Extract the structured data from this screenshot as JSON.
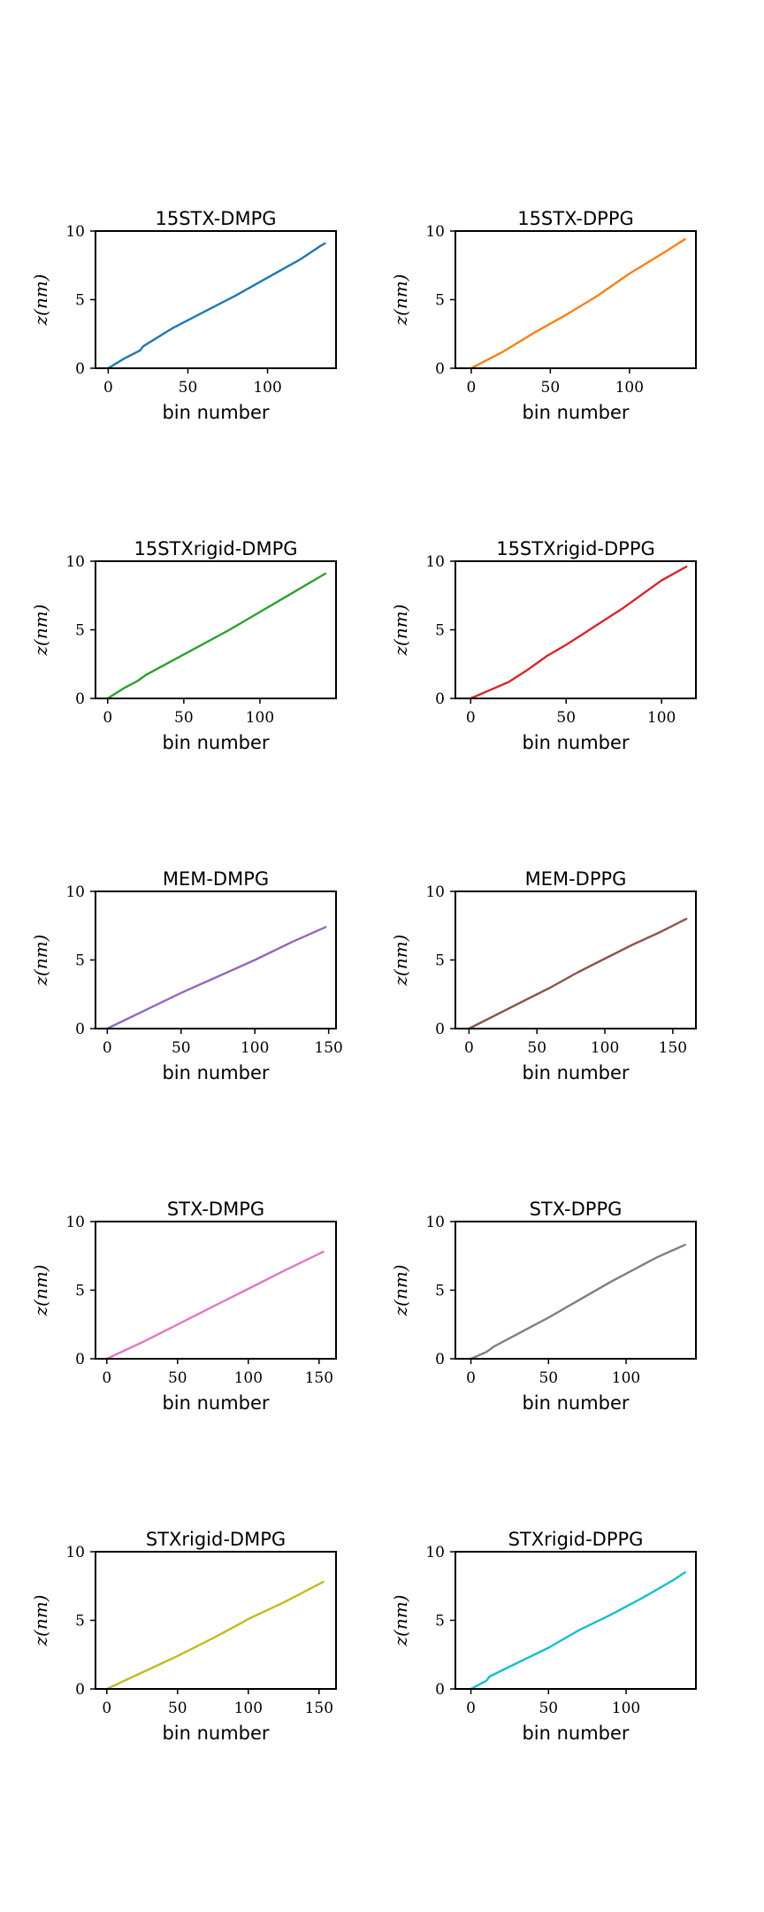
{
  "chart_data": [
    {
      "type": "line",
      "title": "15STX-DMPG",
      "xlabel": "bin number",
      "ylabel": "z(nm)",
      "color": "#1f77b4",
      "xlim": [
        -8,
        143
      ],
      "ylim": [
        0,
        10
      ],
      "xticks": [
        0,
        50,
        100
      ],
      "yticks": [
        0,
        5,
        10
      ],
      "x": [
        0,
        10,
        20,
        22,
        40,
        60,
        80,
        100,
        120,
        133,
        136
      ],
      "y": [
        0,
        0.7,
        1.3,
        1.6,
        2.9,
        4.1,
        5.3,
        6.6,
        7.9,
        8.9,
        9.1
      ]
    },
    {
      "type": "line",
      "title": "15STX-DPPG",
      "xlabel": "bin number",
      "ylabel": "z(nm)",
      "color": "#ff7f0e",
      "xlim": [
        -10,
        142
      ],
      "ylim": [
        0,
        10
      ],
      "xticks": [
        0,
        50,
        100
      ],
      "yticks": [
        0,
        5,
        10
      ],
      "x": [
        0,
        20,
        40,
        60,
        80,
        100,
        120,
        135
      ],
      "y": [
        0,
        1.2,
        2.6,
        3.9,
        5.3,
        6.9,
        8.3,
        9.4
      ]
    },
    {
      "type": "line",
      "title": "15STXrigid-DMPG",
      "xlabel": "bin number",
      "ylabel": "z(nm)",
      "color": "#2ca02c",
      "xlim": [
        -8,
        150
      ],
      "ylim": [
        0,
        10
      ],
      "xticks": [
        0,
        50,
        100
      ],
      "yticks": [
        0,
        5,
        10
      ],
      "x": [
        0,
        10,
        20,
        25,
        40,
        60,
        80,
        100,
        120,
        143
      ],
      "y": [
        0,
        0.7,
        1.3,
        1.7,
        2.6,
        3.8,
        5.0,
        6.3,
        7.6,
        9.1
      ]
    },
    {
      "type": "line",
      "title": "15STXrigid-DPPG",
      "xlabel": "bin number",
      "ylabel": "z(nm)",
      "color": "#d62728",
      "xlim": [
        -8,
        118
      ],
      "ylim": [
        0,
        10
      ],
      "xticks": [
        0,
        50,
        100
      ],
      "yticks": [
        0,
        5,
        10
      ],
      "x": [
        0,
        10,
        20,
        30,
        40,
        50,
        60,
        70,
        80,
        90,
        100,
        113
      ],
      "y": [
        0,
        0.6,
        1.2,
        2.1,
        3.1,
        3.9,
        4.8,
        5.7,
        6.6,
        7.6,
        8.6,
        9.6
      ]
    },
    {
      "type": "line",
      "title": "MEM-DMPG",
      "xlabel": "bin number",
      "ylabel": "z(nm)",
      "color": "#9467bd",
      "xlim": [
        -8,
        155
      ],
      "ylim": [
        0,
        10
      ],
      "xticks": [
        0,
        50,
        100,
        150
      ],
      "yticks": [
        0,
        5,
        10
      ],
      "x": [
        0,
        25,
        50,
        75,
        100,
        125,
        148
      ],
      "y": [
        0,
        1.3,
        2.6,
        3.8,
        5.0,
        6.3,
        7.4
      ]
    },
    {
      "type": "line",
      "title": "MEM-DPPG",
      "xlabel": "bin number",
      "ylabel": "z(nm)",
      "color": "#8c564b",
      "xlim": [
        -10,
        167
      ],
      "ylim": [
        0,
        10
      ],
      "xticks": [
        0,
        50,
        100,
        150
      ],
      "yticks": [
        0,
        5,
        10
      ],
      "x": [
        0,
        20,
        40,
        60,
        80,
        100,
        120,
        140,
        160
      ],
      "y": [
        0,
        1.0,
        2.0,
        3.0,
        4.1,
        5.1,
        6.1,
        7.0,
        8.0
      ]
    },
    {
      "type": "line",
      "title": "STX-DMPG",
      "xlabel": "bin number",
      "ylabel": "z(nm)",
      "color": "#e377c2",
      "xlim": [
        -8,
        162
      ],
      "ylim": [
        0,
        10
      ],
      "xticks": [
        0,
        50,
        100,
        150
      ],
      "yticks": [
        0,
        5,
        10
      ],
      "x": [
        0,
        25,
        50,
        75,
        100,
        125,
        153
      ],
      "y": [
        0,
        1.2,
        2.5,
        3.8,
        5.1,
        6.4,
        7.8
      ]
    },
    {
      "type": "line",
      "title": "STX-DPPG",
      "xlabel": "bin number",
      "ylabel": "z(nm)",
      "color": "#7f7f7f",
      "xlim": [
        -10,
        145
      ],
      "ylim": [
        0,
        10
      ],
      "xticks": [
        0,
        50,
        100
      ],
      "yticks": [
        0,
        5,
        10
      ],
      "x": [
        0,
        10,
        15,
        30,
        50,
        70,
        90,
        110,
        120,
        138
      ],
      "y": [
        0,
        0.5,
        0.9,
        1.8,
        3.0,
        4.3,
        5.6,
        6.8,
        7.4,
        8.3
      ]
    },
    {
      "type": "line",
      "title": "STXrigid-DMPG",
      "xlabel": "bin number",
      "ylabel": "z(nm)",
      "color": "#bcbd22",
      "xlim": [
        -8,
        162
      ],
      "ylim": [
        0,
        10
      ],
      "xticks": [
        0,
        50,
        100,
        150
      ],
      "yticks": [
        0,
        5,
        10
      ],
      "x": [
        0,
        25,
        50,
        75,
        95,
        100,
        125,
        153
      ],
      "y": [
        0,
        1.2,
        2.4,
        3.7,
        4.8,
        5.1,
        6.3,
        7.8
      ]
    },
    {
      "type": "line",
      "title": "STXrigid-DPPG",
      "xlabel": "bin number",
      "ylabel": "z(nm)",
      "color": "#17becf",
      "xlim": [
        -10,
        145
      ],
      "ylim": [
        0,
        10
      ],
      "xticks": [
        0,
        50,
        100
      ],
      "yticks": [
        0,
        5,
        10
      ],
      "x": [
        0,
        10,
        12,
        30,
        50,
        70,
        90,
        110,
        130,
        138
      ],
      "y": [
        0,
        0.6,
        0.9,
        1.9,
        3.0,
        4.3,
        5.4,
        6.6,
        7.9,
        8.5
      ]
    }
  ]
}
